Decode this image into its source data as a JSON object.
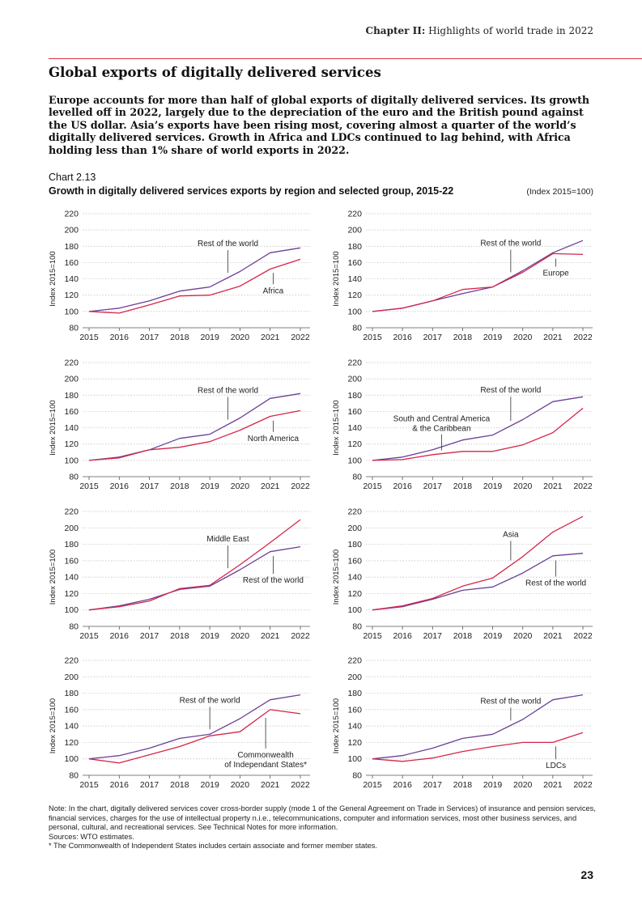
{
  "header": {
    "chapter": "Chapter II:",
    "chapter_title": "Highlights of world trade in 2022"
  },
  "title": "Global exports of digitally delivered services",
  "intro": "Europe accounts for more than half of global exports of digitally delivered services. Its growth levelled off in 2022, largely due to the depreciation of the euro and the British pound against the US dollar. Asia’s exports have been rising most, covering almost a quarter of the world’s digitally delivered services. Growth in Africa and LDCs continued to lag behind, with Africa holding less than 1% share of world exports in 2022.",
  "chart": {
    "number": "Chart 2.13",
    "title": "Growth in digitally delivered services exports by region and selected group, 2015-22",
    "unit": "(Index 2015=100)"
  },
  "colors": {
    "world": "#6b3f96",
    "region": "#d4264a"
  },
  "chart_data": [
    {
      "type": "line",
      "ylabel": "Index 2015=100",
      "ylim": [
        80,
        220
      ],
      "x": [
        "2015",
        "2016",
        "2017",
        "2018",
        "2019",
        "2020",
        "2021",
        "2022"
      ],
      "series": [
        {
          "name": "Rest of the world",
          "values": [
            100,
            104,
            113,
            125,
            130,
            149,
            172,
            178
          ]
        },
        {
          "name": "Africa",
          "values": [
            100,
            98,
            108,
            119,
            120,
            131,
            152,
            164
          ]
        }
      ]
    },
    {
      "type": "line",
      "ylabel": "Index 2015=100",
      "ylim": [
        80,
        220
      ],
      "x": [
        "2015",
        "2016",
        "2017",
        "2018",
        "2019",
        "2020",
        "2021",
        "2022"
      ],
      "series": [
        {
          "name": "Rest of the world",
          "values": [
            100,
            104,
            113,
            122,
            130,
            150,
            172,
            187
          ]
        },
        {
          "name": "Europe",
          "values": [
            100,
            104,
            113,
            127,
            130,
            148,
            171,
            170
          ]
        }
      ]
    },
    {
      "type": "line",
      "ylabel": "Index 2015=100",
      "ylim": [
        80,
        220
      ],
      "x": [
        "2015",
        "2016",
        "2017",
        "2018",
        "2019",
        "2020",
        "2021",
        "2022"
      ],
      "series": [
        {
          "name": "Rest of the world",
          "values": [
            100,
            104,
            113,
            127,
            132,
            152,
            176,
            182
          ]
        },
        {
          "name": "North America",
          "values": [
            100,
            103,
            113,
            116,
            123,
            137,
            154,
            161
          ]
        }
      ]
    },
    {
      "type": "line",
      "ylabel": "Index 2015=100",
      "ylim": [
        80,
        220
      ],
      "x": [
        "2015",
        "2016",
        "2017",
        "2018",
        "2019",
        "2020",
        "2021",
        "2022"
      ],
      "series": [
        {
          "name": "Rest of the world",
          "values": [
            100,
            104,
            113,
            125,
            131,
            150,
            172,
            178
          ]
        },
        {
          "name": "South and Central America & the Caribbean",
          "values": [
            100,
            101,
            107,
            111,
            111,
            119,
            134,
            164
          ]
        }
      ]
    },
    {
      "type": "line",
      "ylabel": "Index 2015=100",
      "ylim": [
        80,
        220
      ],
      "x": [
        "2015",
        "2016",
        "2017",
        "2018",
        "2019",
        "2020",
        "2021",
        "2022"
      ],
      "series": [
        {
          "name": "Rest of the world",
          "values": [
            100,
            105,
            113,
            125,
            129,
            149,
            171,
            177
          ]
        },
        {
          "name": "Middle East",
          "values": [
            100,
            104,
            111,
            126,
            130,
            155,
            182,
            210
          ]
        }
      ]
    },
    {
      "type": "line",
      "ylabel": "Index 2015=100",
      "ylim": [
        80,
        220
      ],
      "x": [
        "2015",
        "2016",
        "2017",
        "2018",
        "2019",
        "2020",
        "2021",
        "2022"
      ],
      "series": [
        {
          "name": "Rest of the world",
          "values": [
            100,
            104,
            113,
            124,
            128,
            145,
            166,
            169
          ]
        },
        {
          "name": "Asia",
          "values": [
            100,
            105,
            114,
            129,
            139,
            165,
            195,
            214
          ]
        }
      ]
    },
    {
      "type": "line",
      "ylabel": "Index 2015=100",
      "ylim": [
        80,
        220
      ],
      "x": [
        "2015",
        "2016",
        "2017",
        "2018",
        "2019",
        "2020",
        "2021",
        "2022"
      ],
      "series": [
        {
          "name": "Rest of the world",
          "values": [
            100,
            104,
            113,
            125,
            130,
            149,
            172,
            178
          ]
        },
        {
          "name": "Commonwealth of Independant States*",
          "values": [
            100,
            95,
            105,
            115,
            128,
            133,
            160,
            155
          ]
        }
      ]
    },
    {
      "type": "line",
      "ylabel": "Index 2015=100",
      "ylim": [
        80,
        220
      ],
      "x": [
        "2015",
        "2016",
        "2017",
        "2018",
        "2019",
        "2020",
        "2021",
        "2022"
      ],
      "series": [
        {
          "name": "Rest of the world",
          "values": [
            100,
            104,
            113,
            125,
            130,
            148,
            172,
            178
          ]
        },
        {
          "name": "LDCs",
          "values": [
            100,
            97,
            101,
            109,
            115,
            120,
            120,
            132
          ]
        }
      ]
    }
  ],
  "annotations": [
    [
      {
        "series": 0,
        "label": "Rest of the world"
      },
      {
        "series": 1,
        "label": "Africa"
      }
    ],
    [
      {
        "series": 0,
        "label": "Rest of the world"
      },
      {
        "series": 1,
        "label": "Europe"
      }
    ],
    [
      {
        "series": 0,
        "label": "Rest of the world"
      },
      {
        "series": 1,
        "label": "North America"
      }
    ],
    [
      {
        "series": 0,
        "label": "Rest of the world"
      },
      {
        "series": 1,
        "label": "South and Central America",
        "label2": "& the Caribbean"
      }
    ],
    [
      {
        "series": 1,
        "label": "Middle East"
      },
      {
        "series": 0,
        "label": "Rest of the world"
      }
    ],
    [
      {
        "series": 1,
        "label": "Asia"
      },
      {
        "series": 0,
        "label": "Rest of the world"
      }
    ],
    [
      {
        "series": 0,
        "label": "Rest of the world"
      },
      {
        "series": 1,
        "label": "Commonwealth",
        "label2": "of Independant States*"
      }
    ],
    [
      {
        "series": 0,
        "label": "Rest of the world"
      },
      {
        "series": 1,
        "label": "LDCs"
      }
    ]
  ],
  "notes": [
    "Note: In the chart, digitally delivered services cover cross-border supply (mode 1 of the General Agreement on Trade in Services) of insurance and pension services, financial services, charges for the use of intellectual property n.i.e., telecommunications, computer and information services, most other business services, and personal, cultural, and recreational services. See Technical Notes for more information.",
    "Sources: WTO estimates.",
    "* The Commonwealth of Independent States includes certain associate and former member states."
  ],
  "page_number": "23"
}
